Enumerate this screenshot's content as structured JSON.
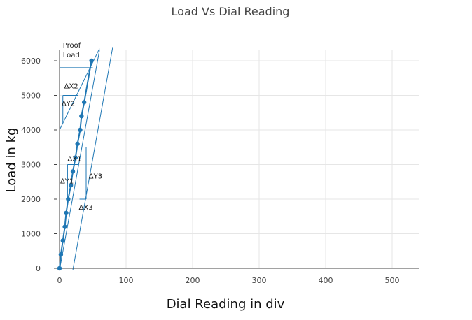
{
  "chart_data": {
    "type": "line",
    "title": "Load Vs Dial Reading",
    "xlabel": "Dial Reading in div",
    "ylabel": "Load in kg",
    "xlim": [
      -5,
      545
    ],
    "ylim": [
      -50,
      6300
    ],
    "x_ticks": [
      0,
      100,
      200,
      300,
      400,
      500
    ],
    "y_ticks": [
      0,
      1000,
      2000,
      3000,
      4000,
      5000,
      6000
    ],
    "grid": true,
    "legend": "none",
    "color": "#1f77b4",
    "series": [
      {
        "x": [
          0,
          2,
          5,
          8,
          10,
          13,
          17,
          20,
          24,
          27,
          31,
          33,
          37,
          48
        ],
        "y": [
          0,
          400,
          800,
          1200,
          1600,
          2000,
          2400,
          2800,
          3200,
          3600,
          4000,
          4400,
          4800,
          6000
        ]
      }
    ],
    "construction_lines": [
      {
        "x": [
          0,
          60
        ],
        "y": [
          -50,
          6300
        ]
      },
      {
        "x": [
          20,
          80
        ],
        "y": [
          -50,
          6400
        ]
      },
      {
        "x": [
          0,
          60
        ],
        "y": [
          4000,
          6350
        ]
      },
      {
        "x": [
          0,
          50
        ],
        "y": [
          5800,
          5800
        ]
      },
      {
        "x": [
          0,
          0
        ],
        "y": [
          5800,
          6300
        ]
      },
      {
        "x": [
          5,
          28
        ],
        "y": [
          5000,
          5000
        ]
      },
      {
        "x": [
          5,
          5
        ],
        "y": [
          4200,
          5000
        ]
      },
      {
        "x": [
          12,
          12
        ],
        "y": [
          2000,
          3000
        ]
      },
      {
        "x": [
          12,
          28
        ],
        "y": [
          3000,
          3000
        ]
      },
      {
        "x": [
          30,
          40
        ],
        "y": [
          2000,
          2000
        ]
      },
      {
        "x": [
          40,
          40
        ],
        "y": [
          2000,
          3500
        ]
      }
    ],
    "annotations": [
      {
        "text": "Proof",
        "x": 5,
        "y": 6380
      },
      {
        "text": "Load",
        "x": 5,
        "y": 6100
      },
      {
        "text": "ΔX2",
        "x": 7,
        "y": 5200
      },
      {
        "text": "ΔY2",
        "x": 3,
        "y": 4700
      },
      {
        "text": "ΔX1",
        "x": 12,
        "y": 3100
      },
      {
        "text": "ΔY1",
        "x": 1,
        "y": 2450
      },
      {
        "text": "ΔY3",
        "x": 44,
        "y": 2600
      },
      {
        "text": "ΔX3",
        "x": 29,
        "y": 1700
      }
    ]
  }
}
